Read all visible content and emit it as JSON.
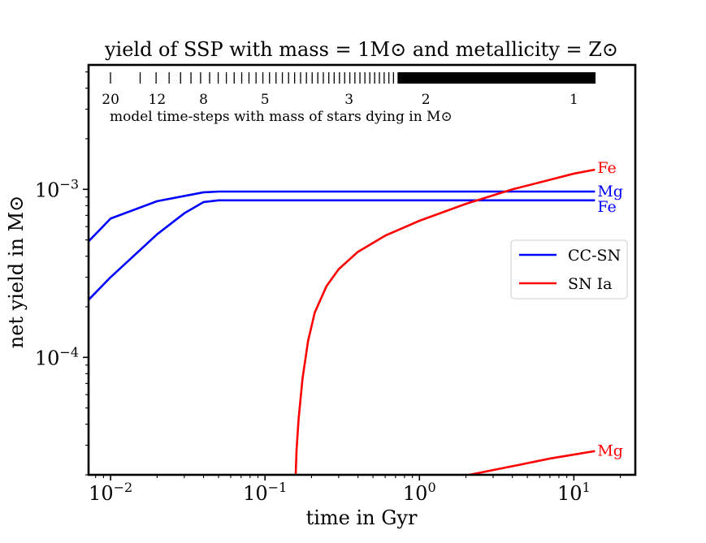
{
  "chart_data": {
    "type": "line",
    "title": "yield of SSP with mass = 1M⊙ and metallicity = Z⊙",
    "xlabel": "time in Gyr",
    "ylabel": "net yield in M⊙",
    "xscale": "log",
    "yscale": "log",
    "xlim": [
      0.0072,
      25
    ],
    "ylim": [
      2e-05,
      0.0055
    ],
    "x_ticks": [
      {
        "value": 0.01,
        "base": "10",
        "exp": "−2"
      },
      {
        "value": 0.1,
        "base": "10",
        "exp": "−1"
      },
      {
        "value": 1,
        "base": "10",
        "exp": "0"
      },
      {
        "value": 10,
        "base": "10",
        "exp": "1"
      }
    ],
    "y_ticks": [
      {
        "value": 0.0001,
        "base": "10",
        "exp": "−4"
      },
      {
        "value": 0.001,
        "base": "10",
        "exp": "−3"
      }
    ],
    "grid": false,
    "legend": {
      "position": "right",
      "entries": [
        {
          "label": "CC-SN",
          "color": "#0000ff"
        },
        {
          "label": "SN Ia",
          "color": "#ff0000"
        }
      ]
    },
    "series": [
      {
        "group": "CC-SN",
        "label": "Mg",
        "color": "#0000ff",
        "points": [
          [
            0.0072,
            0.00049
          ],
          [
            0.01,
            0.00067
          ],
          [
            0.02,
            0.00085
          ],
          [
            0.04,
            0.00096
          ],
          [
            0.05,
            0.00097
          ],
          [
            13.7,
            0.00097
          ]
        ]
      },
      {
        "group": "CC-SN",
        "label": "Fe",
        "color": "#0000ff",
        "points": [
          [
            0.0072,
            0.00022
          ],
          [
            0.01,
            0.0003
          ],
          [
            0.02,
            0.00054
          ],
          [
            0.03,
            0.00072
          ],
          [
            0.04,
            0.00084
          ],
          [
            0.05,
            0.00086
          ],
          [
            13.7,
            0.00086
          ]
        ]
      },
      {
        "group": "SN Ia",
        "label": "Fe",
        "color": "#ff0000",
        "points": [
          [
            0.158,
            2e-05
          ],
          [
            0.16,
            2.8e-05
          ],
          [
            0.165,
            4.3e-05
          ],
          [
            0.175,
            7.5e-05
          ],
          [
            0.19,
            0.000125
          ],
          [
            0.21,
            0.000185
          ],
          [
            0.25,
            0.000265
          ],
          [
            0.3,
            0.000335
          ],
          [
            0.4,
            0.000425
          ],
          [
            0.6,
            0.00053
          ],
          [
            1.0,
            0.00065
          ],
          [
            2.0,
            0.00082
          ],
          [
            4.0,
            0.001
          ],
          [
            7.0,
            0.00114
          ],
          [
            10.0,
            0.00124
          ],
          [
            13.7,
            0.00131
          ]
        ]
      },
      {
        "group": "SN Ia",
        "label": "Mg",
        "color": "#ff0000",
        "points": [
          [
            2.1,
            2e-05
          ],
          [
            4.0,
            2.25e-05
          ],
          [
            7.0,
            2.5e-05
          ],
          [
            10.0,
            2.64e-05
          ],
          [
            13.7,
            2.77e-05
          ]
        ]
      }
    ],
    "annotations": {
      "timestep_labels": [
        {
          "mass": "20",
          "time": 0.01
        },
        {
          "mass": "12",
          "time": 0.02
        },
        {
          "mass": "8",
          "time": 0.04
        },
        {
          "mass": "5",
          "time": 0.1
        },
        {
          "mass": "3",
          "time": 0.35
        },
        {
          "mass": "2",
          "time": 1.1
        },
        {
          "mass": "1",
          "time": 10
        }
      ],
      "timestep_caption": "model time-steps with mass of stars dying in M⊙"
    }
  }
}
